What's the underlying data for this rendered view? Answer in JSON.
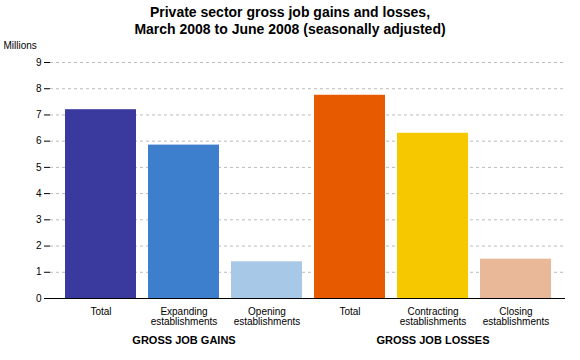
{
  "chart_data": {
    "type": "bar",
    "title": "Private sector gross job gains and losses,\nMarch 2008 to June 2008 (seasonally adjusted)",
    "ylabel": "Millions",
    "categories": [
      "Total",
      "Expanding\nestablishments",
      "Opening\nestablishments",
      "Total",
      "Contracting\nestablishments",
      "Closing\nestablishments"
    ],
    "values": [
      7.2,
      5.85,
      1.4,
      7.75,
      6.3,
      1.5
    ],
    "colors": [
      "#3a3a9e",
      "#3d7fcc",
      "#a8c8e8",
      "#e85a00",
      "#f5c800",
      "#e8b898"
    ],
    "groups": [
      "GROSS JOB GAINS",
      "GROSS JOB GAINS",
      "GROSS JOB GAINS",
      "GROSS JOB LOSSES",
      "GROSS JOB LOSSES",
      "GROSS JOB LOSSES"
    ],
    "ylim": [
      0,
      9
    ],
    "yticks": [
      0,
      1,
      2,
      3,
      4,
      5,
      6,
      7,
      8,
      9
    ],
    "grid": true
  }
}
